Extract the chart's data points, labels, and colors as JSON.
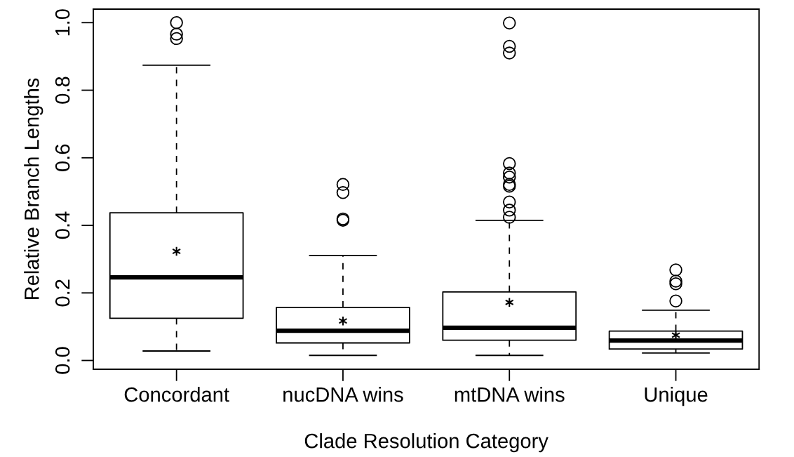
{
  "chart_data": {
    "type": "box",
    "xlabel": "Clade Resolution Category",
    "ylabel": "Relative Branch Lengths",
    "categories": [
      "Concordant",
      "nucDNA wins",
      "mtDNA wins",
      "Unique"
    ],
    "boxes": [
      {
        "low": 0.028,
        "q1": 0.125,
        "median": 0.246,
        "q3": 0.437,
        "high": 0.874,
        "mean": 0.323,
        "outliers": [
          1.0,
          0.966,
          0.953
        ]
      },
      {
        "low": 0.015,
        "q1": 0.052,
        "median": 0.088,
        "q3": 0.157,
        "high": 0.311,
        "mean": 0.117,
        "outliers": [
          0.521,
          0.497,
          0.419,
          0.415
        ]
      },
      {
        "low": 0.015,
        "q1": 0.06,
        "median": 0.097,
        "q3": 0.203,
        "high": 0.415,
        "mean": 0.172,
        "outliers": [
          0.999,
          0.93,
          0.91,
          0.583,
          0.555,
          0.543,
          0.521,
          0.516,
          0.469,
          0.445,
          0.424
        ]
      },
      {
        "low": 0.022,
        "q1": 0.034,
        "median": 0.059,
        "q3": 0.087,
        "high": 0.149,
        "mean": 0.075,
        "outliers": [
          0.268,
          0.235,
          0.227,
          0.176
        ]
      }
    ],
    "color": "#000000",
    "ylim": [
      -0.026,
      1.04
    ],
    "yticks": [
      {
        "value": 0,
        "label": "0.0"
      },
      0.2,
      0.4,
      0.6,
      0.8,
      {
        "value": 1,
        "label": "1.0"
      }
    ],
    "grid": false,
    "legend": false
  }
}
